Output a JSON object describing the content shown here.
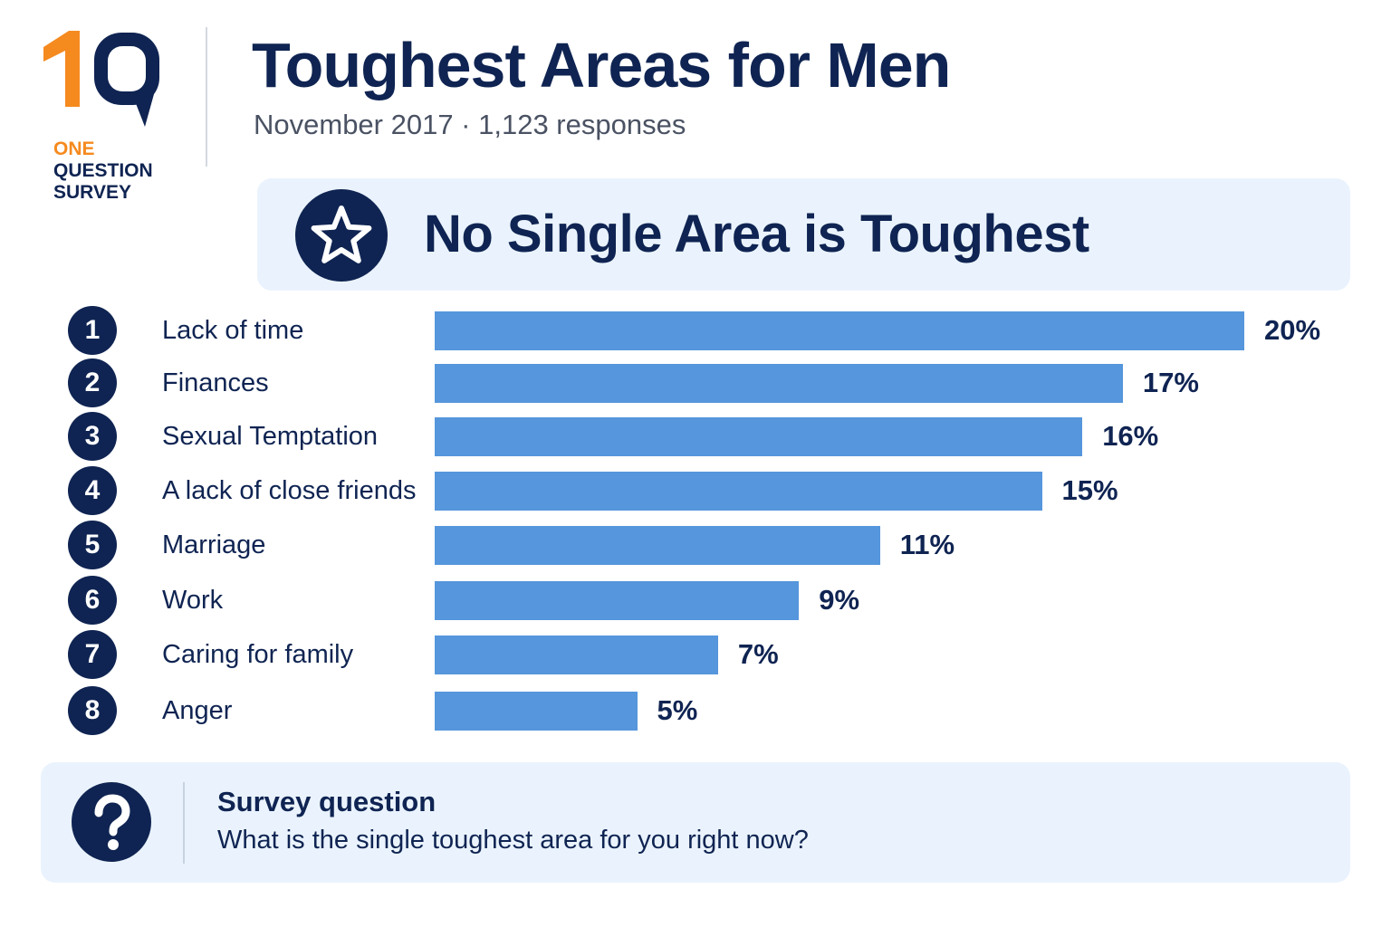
{
  "logo": {
    "mark": "1Q",
    "line1": "ONE",
    "line2": "QUESTION",
    "line3": "SURVEY",
    "colors": {
      "orange": "#f58a1f",
      "navy": "#0f2452"
    }
  },
  "header": {
    "title": "Toughest Areas for Men",
    "subtitle": "November 2017 · 1,123 responses"
  },
  "banner": {
    "icon": "star-icon",
    "text": "No Single Area is Toughest"
  },
  "chart_data": {
    "type": "bar",
    "orientation": "horizontal",
    "title": "",
    "xlabel": "",
    "ylabel": "",
    "xlim": [
      0,
      20
    ],
    "grid": false,
    "legend": "none",
    "bar_color": "#5596dc",
    "ranks": [
      "1",
      "2",
      "3",
      "4",
      "5",
      "6",
      "7",
      "8"
    ],
    "categories": [
      "Lack of time",
      "Finances",
      "Sexual Temptation",
      "A lack of close friends",
      "Marriage",
      "Work",
      "Caring for family",
      "Anger"
    ],
    "values": [
      20,
      17,
      16,
      15,
      11,
      9,
      7,
      5
    ],
    "value_labels": [
      "20%",
      "17%",
      "16%",
      "15%",
      "11%",
      "9%",
      "7%",
      "5%"
    ]
  },
  "question": {
    "icon": "question-mark-icon",
    "heading": "Survey question",
    "text": "What is the single toughest area for you right now?"
  }
}
